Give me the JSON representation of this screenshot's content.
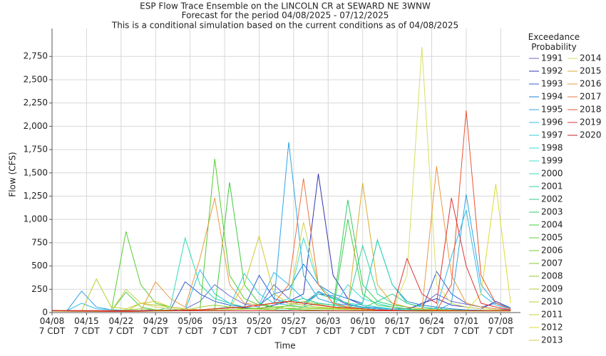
{
  "chart_data": {
    "type": "line",
    "title": "ESP Flow Trace Ensemble on the LINCOLN CR at SEWARD NE 3WNW",
    "subtitle": "Forecast for the period 04/08/2025 - 07/12/2025",
    "annotation": "This is a conditional simulation based on the current conditions as of 04/08/2025",
    "x_label": "Time",
    "y_label": "Flow (CFS)",
    "legend_title": "Exceedance\nProbability",
    "legend": "right",
    "grid": true,
    "x": [
      "04/08",
      "04/11",
      "04/14",
      "04/17",
      "04/20",
      "04/23",
      "04/26",
      "04/29",
      "05/02",
      "05/05",
      "05/08",
      "05/11",
      "05/14",
      "05/17",
      "05/20",
      "05/23",
      "05/26",
      "05/29",
      "06/01",
      "06/04",
      "06/07",
      "06/10",
      "06/13",
      "06/16",
      "06/19",
      "06/22",
      "06/25",
      "06/28",
      "07/01",
      "07/04",
      "07/07",
      "07/10"
    ],
    "xlim": [
      "04/08",
      "07/12"
    ],
    "xticks": [
      {
        "value": "04/08",
        "label": "04/08\n7 CDT"
      },
      {
        "value": "04/15",
        "label": "04/15\n7 CDT"
      },
      {
        "value": "04/22",
        "label": "04/22\n7 CDT"
      },
      {
        "value": "04/29",
        "label": "04/29\n7 CDT"
      },
      {
        "value": "05/06",
        "label": "05/06\n7 CDT"
      },
      {
        "value": "05/13",
        "label": "05/13\n7 CDT"
      },
      {
        "value": "05/20",
        "label": "05/20\n7 CDT"
      },
      {
        "value": "05/27",
        "label": "05/27\n7 CDT"
      },
      {
        "value": "06/03",
        "label": "06/03\n7 CDT"
      },
      {
        "value": "06/10",
        "label": "06/10\n7 CDT"
      },
      {
        "value": "06/17",
        "label": "06/17\n7 CDT"
      },
      {
        "value": "06/24",
        "label": "06/24\n7 CDT"
      },
      {
        "value": "07/01",
        "label": "07/01\n7 CDT"
      },
      {
        "value": "07/08",
        "label": "07/08\n7 CDT"
      }
    ],
    "ylim": [
      0,
      3050
    ],
    "yticks": [
      0,
      250,
      500,
      750,
      {
        "value": 1000,
        "label": "1,000"
      },
      {
        "value": 1250,
        "label": "1,250"
      },
      {
        "value": 1500,
        "label": "1,500"
      },
      {
        "value": 1750,
        "label": "1,750"
      },
      {
        "value": 2000,
        "label": "2,000"
      },
      {
        "value": 2250,
        "label": "2,250"
      },
      {
        "value": 2500,
        "label": "2,500"
      },
      {
        "value": 2750,
        "label": "2,750"
      }
    ],
    "series": [
      {
        "name": "1991",
        "color": "#6a6acc",
        "values": [
          20,
          18,
          16,
          15,
          14,
          14,
          20,
          30,
          25,
          40,
          120,
          300,
          180,
          90,
          60,
          300,
          150,
          100,
          220,
          160,
          80,
          60,
          50,
          40,
          45,
          80,
          200,
          120,
          90,
          60,
          100,
          40
        ]
      },
      {
        "name": "1992",
        "color": "#3434b0",
        "values": [
          20,
          18,
          16,
          15,
          14,
          14,
          15,
          20,
          20,
          25,
          30,
          40,
          60,
          50,
          40,
          80,
          120,
          200,
          1490,
          400,
          150,
          80,
          60,
          40,
          30,
          100,
          150,
          80,
          60,
          40,
          120,
          50
        ]
      },
      {
        "name": "1993",
        "color": "#3460cc",
        "values": [
          20,
          18,
          16,
          15,
          14,
          14,
          15,
          20,
          30,
          330,
          200,
          120,
          80,
          60,
          400,
          150,
          100,
          80,
          200,
          180,
          90,
          60,
          50,
          40,
          30,
          30,
          440,
          200,
          100,
          60,
          40,
          30
        ]
      },
      {
        "name": "1994",
        "color": "#2080d4",
        "values": [
          20,
          18,
          16,
          15,
          14,
          14,
          15,
          20,
          20,
          25,
          30,
          40,
          50,
          60,
          80,
          200,
          250,
          520,
          300,
          200,
          150,
          100,
          780,
          300,
          120,
          80,
          60,
          40,
          30,
          25,
          20,
          20
        ]
      },
      {
        "name": "1995",
        "color": "#30a4e4",
        "values": [
          20,
          18,
          230,
          60,
          30,
          25,
          20,
          20,
          20,
          25,
          30,
          40,
          50,
          60,
          80,
          100,
          1830,
          400,
          150,
          100,
          80,
          60,
          50,
          40,
          30,
          25,
          20,
          100,
          1270,
          300,
          100,
          50
        ]
      },
      {
        "name": "1996",
        "color": "#30bce8",
        "values": [
          20,
          18,
          100,
          40,
          30,
          25,
          20,
          20,
          20,
          25,
          460,
          200,
          100,
          60,
          80,
          430,
          300,
          150,
          100,
          80,
          60,
          50,
          40,
          30,
          25,
          30,
          50,
          600,
          1100,
          200,
          80,
          40
        ]
      },
      {
        "name": "1997",
        "color": "#30ccd8",
        "values": [
          20,
          18,
          16,
          15,
          14,
          14,
          15,
          20,
          20,
          25,
          30,
          40,
          60,
          420,
          200,
          100,
          80,
          60,
          230,
          150,
          100,
          80,
          60,
          40,
          30,
          25,
          20,
          20,
          20,
          20,
          20,
          20
        ]
      },
      {
        "name": "1998",
        "color": "#30e0e0",
        "values": [
          20,
          18,
          16,
          15,
          14,
          14,
          15,
          20,
          20,
          25,
          30,
          40,
          50,
          60,
          80,
          100,
          150,
          100,
          80,
          60,
          300,
          150,
          100,
          60,
          40,
          30,
          25,
          20,
          20,
          20,
          20,
          20
        ]
      },
      {
        "name": "1999",
        "color": "#40e0d0",
        "values": [
          20,
          18,
          16,
          15,
          14,
          14,
          15,
          20,
          20,
          25,
          30,
          40,
          50,
          60,
          80,
          100,
          120,
          800,
          300,
          150,
          100,
          80,
          60,
          40,
          30,
          25,
          20,
          20,
          20,
          20,
          20,
          20
        ]
      },
      {
        "name": "2000",
        "color": "#30dcb4",
        "values": [
          20,
          18,
          16,
          15,
          14,
          14,
          15,
          20,
          60,
          800,
          300,
          150,
          100,
          60,
          40,
          30,
          25,
          60,
          100,
          80,
          60,
          100,
          780,
          300,
          100,
          60,
          40,
          30,
          25,
          20,
          20,
          20
        ]
      },
      {
        "name": "2001",
        "color": "#30d4a0",
        "values": [
          20,
          18,
          16,
          15,
          14,
          14,
          15,
          20,
          20,
          25,
          30,
          40,
          50,
          60,
          80,
          100,
          120,
          100,
          200,
          150,
          100,
          720,
          200,
          100,
          60,
          40,
          30,
          25,
          20,
          20,
          20,
          20
        ]
      },
      {
        "name": "2002",
        "color": "#30cc88",
        "values": [
          20,
          18,
          16,
          15,
          14,
          14,
          15,
          20,
          20,
          25,
          30,
          40,
          50,
          60,
          80,
          100,
          120,
          150,
          100,
          80,
          60,
          50,
          120,
          200,
          100,
          60,
          40,
          30,
          25,
          20,
          20,
          20
        ]
      },
      {
        "name": "2003",
        "color": "#30cc68",
        "values": [
          20,
          18,
          16,
          15,
          14,
          14,
          15,
          20,
          20,
          25,
          30,
          40,
          50,
          60,
          80,
          100,
          120,
          100,
          80,
          60,
          1210,
          300,
          120,
          80,
          60,
          40,
          30,
          25,
          20,
          20,
          20,
          20
        ]
      },
      {
        "name": "2004",
        "color": "#40cc40",
        "values": [
          20,
          18,
          16,
          15,
          14,
          220,
          60,
          30,
          25,
          20,
          30,
          40,
          1400,
          300,
          100,
          60,
          40,
          30,
          25,
          20,
          1000,
          200,
          80,
          60,
          40,
          30,
          25,
          20,
          20,
          20,
          20,
          20
        ]
      },
      {
        "name": "2005",
        "color": "#58cc30",
        "values": [
          20,
          18,
          16,
          15,
          14,
          870,
          300,
          100,
          60,
          40,
          30,
          1650,
          400,
          150,
          80,
          60,
          40,
          30,
          25,
          20,
          20,
          20,
          20,
          20,
          20,
          20,
          20,
          20,
          20,
          20,
          20,
          20
        ]
      },
      {
        "name": "2006",
        "color": "#70cc30",
        "values": [
          20,
          18,
          16,
          15,
          14,
          14,
          15,
          20,
          20,
          25,
          30,
          40,
          50,
          60,
          80,
          100,
          120,
          100,
          80,
          60,
          50,
          40,
          30,
          25,
          20,
          20,
          20,
          20,
          20,
          20,
          20,
          20
        ]
      },
      {
        "name": "2007",
        "color": "#84cc30",
        "values": [
          15,
          14,
          13,
          12,
          12,
          12,
          14,
          18,
          18,
          22,
          26,
          30,
          34,
          40,
          50,
          60,
          70,
          60,
          50,
          40,
          35,
          30,
          25,
          20,
          18,
          18,
          18,
          18,
          18,
          18,
          18,
          18
        ]
      },
      {
        "name": "2008",
        "color": "#98cc30",
        "values": [
          18,
          16,
          15,
          14,
          13,
          30,
          40,
          30,
          25,
          22,
          60,
          80,
          60,
          40,
          35,
          30,
          80,
          120,
          90,
          60,
          40,
          30,
          25,
          20,
          20,
          22,
          30,
          25,
          20,
          18,
          18,
          18
        ]
      },
      {
        "name": "2009",
        "color": "#accc30",
        "values": [
          16,
          15,
          14,
          13,
          12,
          12,
          14,
          16,
          18,
          20,
          24,
          28,
          32,
          36,
          40,
          44,
          48,
          44,
          40,
          36,
          32,
          28,
          24,
          20,
          18,
          16,
          16,
          16,
          16,
          16,
          16,
          16
        ]
      },
      {
        "name": "2010",
        "color": "#bccc30",
        "values": [
          20,
          18,
          16,
          360,
          60,
          40,
          100,
          80,
          60,
          40,
          30,
          40,
          50,
          60,
          80,
          100,
          120,
          100,
          80,
          60,
          50,
          40,
          30,
          25,
          20,
          20,
          20,
          20,
          20,
          20,
          20,
          20
        ]
      },
      {
        "name": "2011",
        "color": "#cccc30",
        "values": [
          20,
          18,
          16,
          15,
          14,
          14,
          100,
          120,
          60,
          40,
          30,
          40,
          50,
          300,
          820,
          200,
          100,
          80,
          60,
          50,
          40,
          30,
          25,
          20,
          20,
          20,
          20,
          20,
          20,
          20,
          20,
          20
        ]
      },
      {
        "name": "2012",
        "color": "#dcdc30",
        "values": [
          20,
          18,
          16,
          15,
          14,
          14,
          15,
          20,
          20,
          25,
          30,
          40,
          50,
          60,
          80,
          100,
          120,
          100,
          80,
          60,
          50,
          40,
          30,
          25,
          20,
          20,
          20,
          20,
          20,
          200,
          1380,
          100
        ]
      },
      {
        "name": "2013",
        "color": "#d0d050",
        "values": [
          20,
          18,
          16,
          15,
          14,
          250,
          100,
          60,
          40,
          30,
          30,
          40,
          50,
          60,
          80,
          100,
          120,
          970,
          300,
          100,
          60,
          40,
          30,
          25,
          20,
          20,
          20,
          20,
          20,
          20,
          20,
          20
        ]
      },
      {
        "name": "2014",
        "color": "#d8e060",
        "values": [
          20,
          18,
          16,
          15,
          14,
          14,
          15,
          20,
          20,
          25,
          30,
          40,
          50,
          60,
          80,
          100,
          120,
          100,
          80,
          60,
          50,
          40,
          30,
          25,
          400,
          2850,
          300,
          100,
          60,
          40,
          30,
          20
        ]
      },
      {
        "name": "2015",
        "color": "#dcac30",
        "values": [
          20,
          18,
          16,
          15,
          14,
          14,
          15,
          20,
          20,
          25,
          30,
          40,
          50,
          60,
          80,
          100,
          120,
          100,
          80,
          60,
          50,
          1390,
          300,
          100,
          60,
          40,
          30,
          25,
          20,
          20,
          20,
          20
        ]
      },
      {
        "name": "2016",
        "color": "#ec9840",
        "values": [
          20,
          18,
          16,
          15,
          14,
          14,
          15,
          330,
          150,
          60,
          580,
          1230,
          300,
          100,
          80,
          100,
          120,
          100,
          80,
          60,
          50,
          40,
          30,
          25,
          20,
          20,
          1570,
          400,
          100,
          60,
          40,
          20
        ]
      },
      {
        "name": "2017",
        "color": "#ec7440",
        "values": [
          20,
          18,
          16,
          15,
          14,
          14,
          15,
          20,
          20,
          25,
          30,
          40,
          50,
          60,
          80,
          100,
          300,
          1440,
          300,
          100,
          60,
          40,
          30,
          25,
          20,
          20,
          20,
          20,
          20,
          20,
          20,
          20
        ]
      },
      {
        "name": "2018",
        "color": "#ec5430",
        "values": [
          20,
          18,
          16,
          15,
          14,
          14,
          15,
          20,
          20,
          25,
          30,
          40,
          50,
          60,
          80,
          100,
          120,
          100,
          80,
          60,
          50,
          40,
          30,
          25,
          20,
          20,
          20,
          300,
          2170,
          400,
          100,
          40
        ]
      },
      {
        "name": "2019",
        "color": "#dc3434",
        "values": [
          20,
          18,
          16,
          15,
          14,
          14,
          15,
          20,
          20,
          25,
          30,
          40,
          50,
          60,
          80,
          100,
          120,
          100,
          80,
          60,
          50,
          40,
          30,
          25,
          580,
          200,
          100,
          1230,
          500,
          100,
          60,
          30
        ]
      },
      {
        "name": "2020",
        "color": "#c82020",
        "values": [
          22,
          22,
          21,
          21,
          20,
          20,
          20,
          20,
          20,
          20,
          20,
          20,
          20,
          20,
          20,
          20,
          20,
          20,
          20,
          20,
          20,
          20,
          20,
          20,
          20,
          20,
          20,
          20,
          20,
          20,
          20,
          20
        ]
      }
    ]
  }
}
